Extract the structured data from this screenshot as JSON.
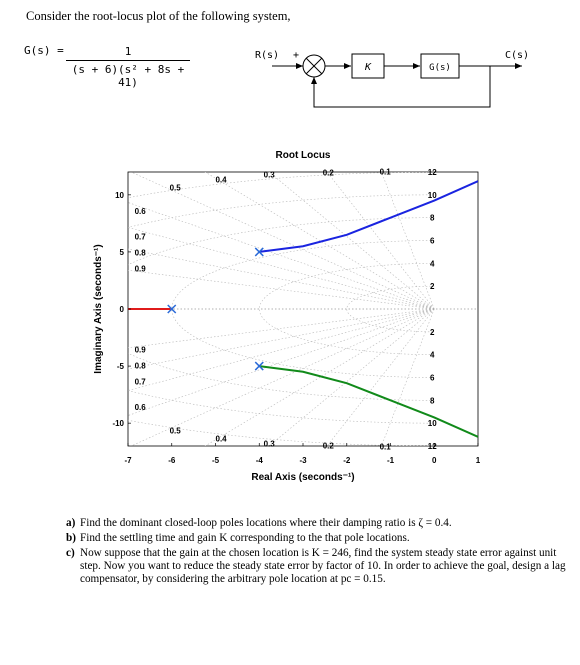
{
  "intro": "Consider the root-locus plot of the following system,",
  "transfer": {
    "lhs": "G(s) =",
    "numerator": "1",
    "denominator": "(s + 6)(s² + 8s + 41)"
  },
  "block_diagram": {
    "input": "R(s)",
    "sign": "+",
    "gain": "K",
    "plant": "G(s)",
    "output": "C(s)"
  },
  "chart_data": {
    "type": "scatter",
    "title": "Root Locus",
    "xlabel": "Real Axis (seconds⁻¹)",
    "ylabel": "Imaginary Axis (seconds⁻¹)",
    "xlim": [
      -7,
      1
    ],
    "ylim": [
      -12,
      12
    ],
    "xticks": [
      "-7",
      "-6",
      "-5",
      "-4",
      "-3",
      "-2",
      "-1",
      "0",
      "1"
    ],
    "yticks": [
      "-10",
      "-5",
      "0",
      "5",
      "10"
    ],
    "grid": true,
    "poles": [
      {
        "x": -6,
        "y": 0
      },
      {
        "x": -4,
        "y": 5
      },
      {
        "x": -4,
        "y": -5
      }
    ],
    "series": [
      {
        "color": "#e01b1b",
        "points": [
          [
            -7,
            0
          ],
          [
            -6,
            0
          ]
        ]
      },
      {
        "color": "#1a24e0",
        "points": [
          [
            -4,
            5
          ],
          [
            -3,
            5.5
          ],
          [
            -2,
            6.5
          ],
          [
            -1,
            8
          ],
          [
            0,
            9.5
          ],
          [
            1,
            11.2
          ]
        ]
      },
      {
        "color": "#118a1a",
        "points": [
          [
            -4,
            -5
          ],
          [
            -3,
            -5.5
          ],
          [
            -2,
            -6.5
          ],
          [
            -1,
            -8
          ],
          [
            0,
            -9.5
          ],
          [
            1,
            -11.2
          ]
        ]
      }
    ],
    "damping_labels": [
      "0.6",
      "0.5",
      "0.4",
      "0.3",
      "0.2",
      "0.1",
      "0.7",
      "0.8",
      "0.9"
    ],
    "damping_values": [
      0.6,
      0.5,
      0.4,
      0.3,
      0.2,
      0.1,
      0.7,
      0.8,
      0.9
    ],
    "frequency_labels": [
      "12",
      "10",
      "8",
      "6",
      "4",
      "2"
    ],
    "frequency_values": [
      12,
      10,
      8,
      6,
      4,
      2
    ]
  },
  "questions": [
    {
      "label": "a)",
      "text": "Find the dominant closed-loop poles locations where their damping ratio is ζ = 0.4."
    },
    {
      "label": "b)",
      "text": "Find the settling time and gain K corresponding to the that pole locations."
    },
    {
      "label": "c)",
      "text": "Now suppose that the gain at the chosen location is K = 246, find the system steady state error against unit step. Now you want to reduce the steady state error by factor of 10. In order to achieve the goal, design a lag compensator, by considering the arbitrary pole location at pc = 0.15."
    }
  ]
}
